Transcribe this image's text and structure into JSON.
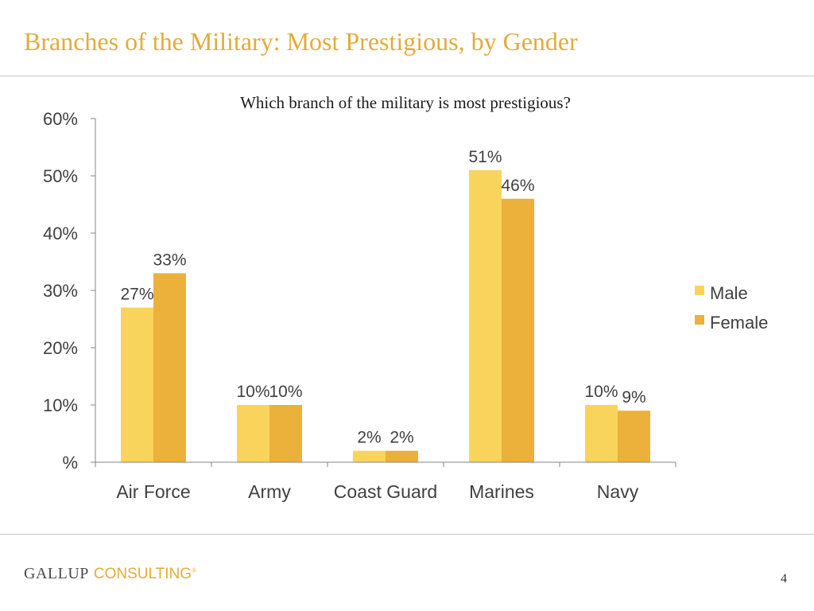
{
  "slide": {
    "title": "Branches of the Military: Most Prestigious, by Gender",
    "page_number": "4",
    "logo": {
      "brand": "GALLUP",
      "sub": "CONSULTING",
      "mark": "®"
    }
  },
  "colors": {
    "accent": "#e2ac3a",
    "male": "#f9d45c",
    "female": "#ecb13b",
    "axis": "#868686",
    "text": "#404040"
  },
  "chart_data": {
    "type": "bar",
    "title": "Which branch of the military is most prestigious?",
    "categories": [
      "Air Force",
      "Army",
      "Coast Guard",
      "Marines",
      "Navy"
    ],
    "series": [
      {
        "name": "Male",
        "values": [
          27,
          10,
          2,
          51,
          10
        ],
        "labels": [
          "27%",
          "10%",
          "2%",
          "51%",
          "10%"
        ]
      },
      {
        "name": "Female",
        "values": [
          33,
          10,
          2,
          46,
          9
        ],
        "labels": [
          "33%",
          "10%",
          "2%",
          "46%",
          "9%"
        ]
      }
    ],
    "yticks": [
      {
        "value": 0,
        "label": "%"
      },
      {
        "value": 10,
        "label": "10%"
      },
      {
        "value": 20,
        "label": "20%"
      },
      {
        "value": 30,
        "label": "30%"
      },
      {
        "value": 40,
        "label": "40%"
      },
      {
        "value": 50,
        "label": "50%"
      },
      {
        "value": 60,
        "label": "60%"
      }
    ],
    "ylim": [
      0,
      60
    ],
    "legend": "right",
    "grid": false
  }
}
